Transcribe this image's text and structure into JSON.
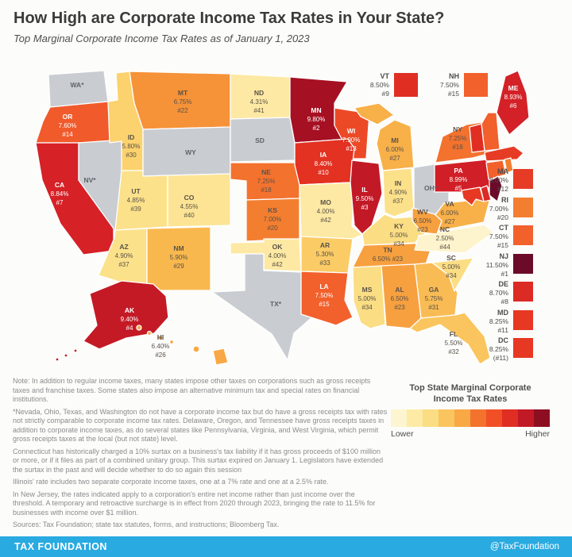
{
  "header": {
    "title": "How High are Corporate Income Tax Rates in Your State?",
    "subtitle": "Top Marginal Corporate Income Tax Rates as of January 1, 2023"
  },
  "chart_data": {
    "type": "choropleth",
    "title": "Top Marginal Corporate Income Tax Rates as of January 1, 2023",
    "unit": "percent",
    "no_tax_color": "#C9CDD2",
    "states": [
      {
        "abbr": "WA",
        "label_lines": [
          "WA*"
        ],
        "rate": null,
        "rank": null,
        "color": "#C9CDD2",
        "text": "gray"
      },
      {
        "abbr": "OR",
        "label_lines": [
          "OR",
          "7.60%",
          "#14"
        ],
        "rate": 7.6,
        "rank": 14,
        "color": "#F15A2B",
        "text": "light"
      },
      {
        "abbr": "CA",
        "label_lines": [
          "CA",
          "8.84%",
          "#7"
        ],
        "rate": 8.84,
        "rank": 7,
        "color": "#D62127",
        "text": "light"
      },
      {
        "abbr": "NV",
        "label_lines": [
          "NV*"
        ],
        "rate": null,
        "rank": null,
        "color": "#C9CDD2",
        "text": "gray"
      },
      {
        "abbr": "ID",
        "label_lines": [
          "ID",
          "5.80%",
          "#30"
        ],
        "rate": 5.8,
        "rank": 30,
        "color": "#FBD26E",
        "text": "dark"
      },
      {
        "abbr": "MT",
        "label_lines": [
          "MT",
          "6.75%",
          "#22"
        ],
        "rate": 6.75,
        "rank": 22,
        "color": "#F69238",
        "text": "dark"
      },
      {
        "abbr": "WY",
        "label_lines": [
          "WY"
        ],
        "rate": null,
        "rank": null,
        "color": "#C9CDD2",
        "text": "gray"
      },
      {
        "abbr": "UT",
        "label_lines": [
          "UT",
          "4.85%",
          "#39"
        ],
        "rate": 4.85,
        "rank": 39,
        "color": "#FCE18B",
        "text": "dark"
      },
      {
        "abbr": "CO",
        "label_lines": [
          "CO",
          "4.55%",
          "#40"
        ],
        "rate": 4.55,
        "rank": 40,
        "color": "#FCE494",
        "text": "dark"
      },
      {
        "abbr": "AZ",
        "label_lines": [
          "AZ",
          "4.90%",
          "#37"
        ],
        "rate": 4.9,
        "rank": 37,
        "color": "#FCE18B",
        "text": "dark"
      },
      {
        "abbr": "NM",
        "label_lines": [
          "NM",
          "5.90%",
          "#29"
        ],
        "rate": 5.9,
        "rank": 29,
        "color": "#F9B84E",
        "text": "dark"
      },
      {
        "abbr": "ND",
        "label_lines": [
          "ND",
          "4.31%",
          "#41"
        ],
        "rate": 4.31,
        "rank": 41,
        "color": "#FDE9A3",
        "text": "dark"
      },
      {
        "abbr": "SD",
        "label_lines": [
          "SD"
        ],
        "rate": null,
        "rank": null,
        "color": "#C9CDD2",
        "text": "gray"
      },
      {
        "abbr": "NE",
        "label_lines": [
          "NE",
          "7.25%",
          "#18"
        ],
        "rate": 7.25,
        "rank": 18,
        "color": "#F3722E",
        "text": "dark"
      },
      {
        "abbr": "KS",
        "label_lines": [
          "KS",
          "7.00%",
          "#20"
        ],
        "rate": 7.0,
        "rank": 20,
        "color": "#F47E30",
        "text": "dark"
      },
      {
        "abbr": "OK",
        "label_lines": [
          "OK",
          "4.00%",
          "#42"
        ],
        "rate": 4.0,
        "rank": 42,
        "color": "#FDE9A3",
        "text": "dark"
      },
      {
        "abbr": "TX",
        "label_lines": [
          "TX*"
        ],
        "rate": null,
        "rank": null,
        "color": "#C9CDD2",
        "text": "gray"
      },
      {
        "abbr": "MN",
        "label_lines": [
          "MN",
          "9.80%",
          "#2"
        ],
        "rate": 9.8,
        "rank": 2,
        "color": "#A61023",
        "text": "light"
      },
      {
        "abbr": "IA",
        "label_lines": [
          "IA",
          "8.40%",
          "#10"
        ],
        "rate": 8.4,
        "rank": 10,
        "color": "#E33122",
        "text": "light"
      },
      {
        "abbr": "MO",
        "label_lines": [
          "MO",
          "4.00%",
          "#42"
        ],
        "rate": 4.0,
        "rank": 42,
        "color": "#FDE9A3",
        "text": "dark"
      },
      {
        "abbr": "AR",
        "label_lines": [
          "AR",
          "5.30%",
          "#33"
        ],
        "rate": 5.3,
        "rank": 33,
        "color": "#FBCB66",
        "text": "dark"
      },
      {
        "abbr": "LA",
        "label_lines": [
          "LA",
          "7.50%",
          "#15"
        ],
        "rate": 7.5,
        "rank": 15,
        "color": "#F2602C",
        "text": "light"
      },
      {
        "abbr": "WI",
        "label_lines": [
          "WI",
          "7.90%",
          "#13"
        ],
        "rate": 7.9,
        "rank": 13,
        "color": "#EC4A27",
        "text": "light"
      },
      {
        "abbr": "IL",
        "label_lines": [
          "IL",
          "9.50%",
          "#3"
        ],
        "rate": 9.5,
        "rank": 3,
        "color": "#C21926",
        "text": "light"
      },
      {
        "abbr": "MI",
        "label_lines": [
          "MI",
          "6.00%",
          "#27"
        ],
        "rate": 6.0,
        "rank": 27,
        "color": "#F8B049",
        "text": "dark"
      },
      {
        "abbr": "IN",
        "label_lines": [
          "IN",
          "4.90%",
          "#37"
        ],
        "rate": 4.9,
        "rank": 37,
        "color": "#FCE18B",
        "text": "dark"
      },
      {
        "abbr": "OH",
        "label_lines": [
          "OH*"
        ],
        "rate": null,
        "rank": null,
        "color": "#C9CDD2",
        "text": "gray"
      },
      {
        "abbr": "KY",
        "label_lines": [
          "KY",
          "5.00%",
          "#34"
        ],
        "rate": 5.0,
        "rank": 34,
        "color": "#FBDD84",
        "text": "dark"
      },
      {
        "abbr": "TN",
        "label_lines": [
          "TN",
          "6.50% #23"
        ],
        "rate": 6.5,
        "rank": 23,
        "color": "#F7A03F",
        "text": "dark"
      },
      {
        "abbr": "MS",
        "label_lines": [
          "MS",
          "5.00%",
          "#34"
        ],
        "rate": 5.0,
        "rank": 34,
        "color": "#FBDD84",
        "text": "dark"
      },
      {
        "abbr": "AL",
        "label_lines": [
          "AL",
          "6.50%",
          "#23"
        ],
        "rate": 6.5,
        "rank": 23,
        "color": "#F7A03F",
        "text": "dark"
      },
      {
        "abbr": "GA",
        "label_lines": [
          "GA",
          "5.75%",
          "#31"
        ],
        "rate": 5.75,
        "rank": 31,
        "color": "#F9BC55",
        "text": "dark"
      },
      {
        "abbr": "SC",
        "label_lines": [
          "SC",
          "5.00%",
          "#34"
        ],
        "rate": 5.0,
        "rank": 34,
        "color": "#FBDD84",
        "text": "dark"
      },
      {
        "abbr": "NC",
        "label_lines": [
          "NC",
          "2.50%",
          "#44"
        ],
        "rate": 2.5,
        "rank": 44,
        "color": "#FDF3CC",
        "text": "dark"
      },
      {
        "abbr": "VA",
        "label_lines": [
          "VA",
          "6.00%",
          "#27"
        ],
        "rate": 6.0,
        "rank": 27,
        "color": "#F8B049",
        "text": "dark"
      },
      {
        "abbr": "WV",
        "label_lines": [
          "WV",
          "6.50%",
          "#23"
        ],
        "rate": 6.5,
        "rank": 23,
        "color": "#F7A03F",
        "text": "dark"
      },
      {
        "abbr": "FL",
        "label_lines": [
          "FL",
          "5.50%",
          "#32"
        ],
        "rate": 5.5,
        "rank": 32,
        "color": "#FAC55E",
        "text": "dark"
      },
      {
        "abbr": "PA",
        "label_lines": [
          "PA",
          "8.99%",
          "#5"
        ],
        "rate": 8.99,
        "rank": 5,
        "color": "#D11F27",
        "text": "light"
      },
      {
        "abbr": "NY",
        "label_lines": [
          "NY",
          "7.25%",
          "#18"
        ],
        "rate": 7.25,
        "rank": 18,
        "color": "#F3722E",
        "text": "dark"
      },
      {
        "abbr": "ME",
        "label_lines": [
          "ME",
          "8.93%",
          "#6"
        ],
        "rate": 8.93,
        "rank": 6,
        "color": "#D32127",
        "text": "light"
      },
      {
        "abbr": "VT",
        "label_lines": null,
        "rate": 8.5,
        "rank": 9,
        "color": "#E02E23",
        "text": "light"
      },
      {
        "abbr": "NH",
        "label_lines": null,
        "rate": 7.5,
        "rank": 15,
        "color": "#F2602C",
        "text": "light"
      },
      {
        "abbr": "MA",
        "label_lines": null,
        "rate": 8.0,
        "rank": 12,
        "color": "#E63C25",
        "text": "light"
      },
      {
        "abbr": "RI",
        "label_lines": null,
        "rate": 7.0,
        "rank": 20,
        "color": "#F47E30",
        "text": "light"
      },
      {
        "abbr": "CT",
        "label_lines": null,
        "rate": 7.5,
        "rank": 15,
        "color": "#F2602C",
        "text": "light"
      },
      {
        "abbr": "NJ",
        "label_lines": null,
        "rate": 11.5,
        "rank": 1,
        "color": "#6B0B29",
        "text": "light"
      },
      {
        "abbr": "DE",
        "label_lines": null,
        "rate": 8.7,
        "rank": 8,
        "color": "#DC2A24",
        "text": "light"
      },
      {
        "abbr": "MD",
        "label_lines": null,
        "rate": 8.25,
        "rank": 11,
        "color": "#E63823",
        "text": "light"
      },
      {
        "abbr": "AK",
        "label_lines": [
          "AK",
          "9.40%",
          "#4"
        ],
        "rate": 9.4,
        "rank": 4,
        "color": "#C41A26",
        "text": "light"
      },
      {
        "abbr": "HI",
        "label_lines": [
          "HI",
          "6.40%",
          "#26"
        ],
        "rate": 6.4,
        "rank": 26,
        "color": "#F8A844",
        "text": "dark"
      }
    ],
    "callouts_top": [
      {
        "abbr": "VT",
        "rate": "8.50%",
        "rank": "#9",
        "color": "#E02E23"
      },
      {
        "abbr": "NH",
        "rate": "7.50%",
        "rank": "#15",
        "color": "#F2602C"
      }
    ],
    "callouts_right": [
      {
        "abbr": "MA",
        "rate": "8.00%",
        "rank": "#12",
        "color": "#E63C25"
      },
      {
        "abbr": "RI",
        "rate": "7.00%",
        "rank": "#20",
        "color": "#F47E30"
      },
      {
        "abbr": "CT",
        "rate": "7.50%",
        "rank": "#15",
        "color": "#F2602C"
      },
      {
        "abbr": "NJ",
        "rate": "11.50%",
        "rank": "#1",
        "color": "#6B0B29"
      },
      {
        "abbr": "DE",
        "rate": "8.70%",
        "rank": "#8",
        "color": "#DC2A24"
      },
      {
        "abbr": "MD",
        "rate": "8.25%",
        "rank": "#11",
        "color": "#E63823"
      },
      {
        "abbr": "DC",
        "rate": "8.25%",
        "rank": "(#11)",
        "color": "#E63823"
      }
    ]
  },
  "legend": {
    "title_line1": "Top State Marginal Corporate",
    "title_line2": "Income Tax Rates",
    "lower": "Lower",
    "higher": "Higher",
    "colors": [
      "#FDF5D0",
      "#FDEBA5",
      "#FBDD84",
      "#FAC55E",
      "#F8A844",
      "#F3722E",
      "#F15027",
      "#E02E23",
      "#C21926",
      "#8E0E21"
    ]
  },
  "notes": [
    "Note: In addition to regular income taxes, many states impose other taxes on corporations such as gross receipts taxes and franchise taxes. Some states also impose an alternative minimum tax and special rates on financial institutions.",
    "*Nevada, Ohio, Texas, and Washington do not have a corporate income tax but do have a gross receipts tax with rates not strictly comparable to corporate income tax rates. Delaware, Oregon, and Tennessee have gross receipts taxes in addition to corporate income taxes, as do several states like Pennsylvania, Virginia, and West Virginia, which permit gross receipts taxes at the local (but not state) level.",
    "Connecticut has historically charged a 10% surtax on a business's tax liability if it has gross proceeds of $100 million or more, or if it files as part of a combined unitary group. This surtax expired on January 1. Legislators have extended the surtax in the past and will decide whether to do so again this session",
    "Illinois' rate includes two separate corporate income taxes, one at a 7% rate and one at a 2.5% rate.",
    "In New Jersey, the rates indicated apply to a corporation's entire net income rather than just income over the threshold. A temporary and retroactive surcharge is in effect from 2020 through 2023, bringing the rate to 11.5% for businesses with income over $1 million.",
    "Sources: Tax Foundation; state tax statutes, forms, and instructions; Bloomberg Tax."
  ],
  "footer": {
    "brand": "TAX FOUNDATION",
    "handle": "@TaxFoundation",
    "bar_color": "#29AAE1"
  }
}
